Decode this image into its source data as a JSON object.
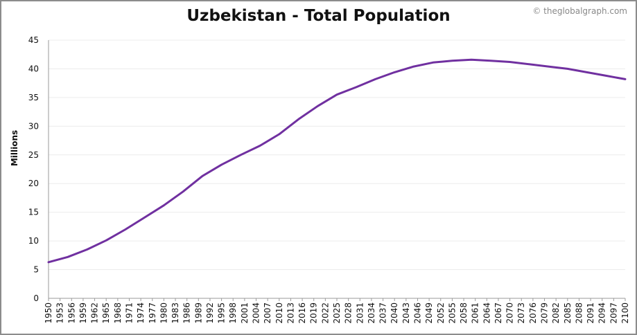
{
  "title": "Uzbekistan - Total Population",
  "credit": "© theglobalgraph.com",
  "colors": {
    "line": "#7030a0",
    "grid": "#ececec",
    "axis": "#999999",
    "text": "#111111"
  },
  "chart_data": {
    "type": "line",
    "title": "Uzbekistan - Total Population",
    "xlabel": "",
    "ylabel": "Millions",
    "xlim": [
      1950,
      2100
    ],
    "ylim": [
      0,
      45
    ],
    "yticks": [
      0,
      5,
      10,
      15,
      20,
      25,
      30,
      35,
      40,
      45
    ],
    "xticks": [
      1950,
      1953,
      1956,
      1959,
      1962,
      1965,
      1968,
      1971,
      1974,
      1977,
      1980,
      1983,
      1986,
      1989,
      1992,
      1995,
      1998,
      2001,
      2004,
      2007,
      2010,
      2013,
      2016,
      2019,
      2022,
      2025,
      2028,
      2031,
      2034,
      2037,
      2040,
      2043,
      2046,
      2049,
      2052,
      2055,
      2058,
      2061,
      2064,
      2067,
      2070,
      2073,
      2076,
      2079,
      2082,
      2085,
      2088,
      2091,
      2094,
      2097,
      2100
    ],
    "grid": true,
    "series": [
      {
        "x": [
          1950,
          1955,
          1960,
          1965,
          1970,
          1975,
          1980,
          1985,
          1990,
          1995,
          2000,
          2005,
          2010,
          2015,
          2020,
          2025,
          2030,
          2035,
          2040,
          2045,
          2050,
          2055,
          2060,
          2065,
          2070,
          2075,
          2080,
          2085,
          2090,
          2095,
          2100
        ],
        "y": [
          6.3,
          7.2,
          8.5,
          10.1,
          12.0,
          14.1,
          16.2,
          18.6,
          21.3,
          23.3,
          25.0,
          26.6,
          28.6,
          31.2,
          33.5,
          35.5,
          36.8,
          38.2,
          39.4,
          40.4,
          41.1,
          41.4,
          41.6,
          41.4,
          41.2,
          40.8,
          40.4,
          40.0,
          39.4,
          38.8,
          38.2
        ]
      }
    ]
  }
}
